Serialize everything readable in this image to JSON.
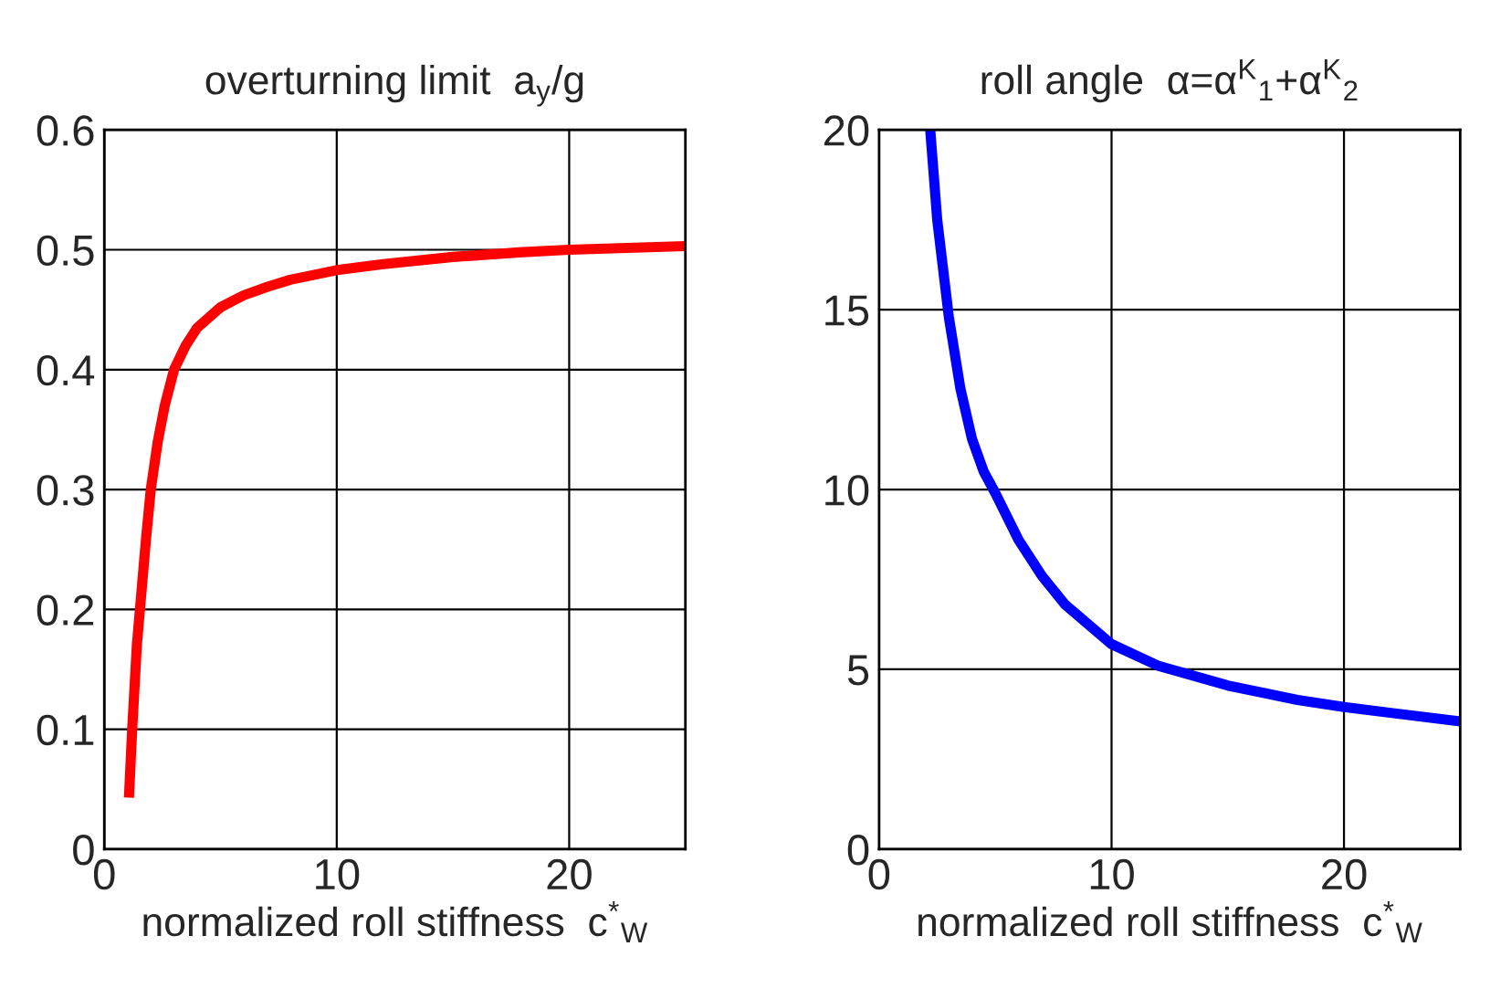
{
  "chart_data": [
    {
      "type": "line",
      "title": "overturning limit  a$_{y}$/g",
      "xlabel": "normalized roll stiffness  c$^{*}$$_{W}$",
      "series": [
        {
          "color": "#ff0000",
          "x": [
            1.06,
            1.2,
            1.4,
            1.6,
            1.8,
            2.0,
            2.3,
            2.6,
            3.0,
            3.5,
            4,
            5,
            6,
            7,
            8,
            10,
            12,
            15,
            18,
            20,
            25
          ],
          "values": [
            0.043,
            0.1,
            0.17,
            0.215,
            0.26,
            0.3,
            0.34,
            0.37,
            0.4,
            0.42,
            0.435,
            0.452,
            0.462,
            0.469,
            0.475,
            0.483,
            0.488,
            0.494,
            0.498,
            0.5,
            0.503
          ]
        }
      ],
      "xlim": [
        0,
        25
      ],
      "xticks": [
        0,
        10,
        20
      ],
      "ylim": [
        0,
        0.6
      ],
      "yticks": [
        0,
        0.1,
        0.2,
        0.3,
        0.4,
        0.5,
        0.6
      ],
      "grid": true
    },
    {
      "type": "line",
      "title": "roll angle  α=α$^{K}$$_{1}$+α$^{K}$$_{2}$",
      "xlabel": "normalized roll stiffness  c$^{*}$$_{W}$",
      "series": [
        {
          "color": "#0000ff",
          "x": [
            2.2,
            2.5,
            3,
            3.5,
            4,
            4.5,
            5,
            6,
            7,
            8,
            10,
            12,
            15,
            18,
            20,
            25
          ],
          "values": [
            20,
            17.5,
            14.8,
            12.8,
            11.4,
            10.5,
            9.9,
            8.6,
            7.6,
            6.8,
            5.7,
            5.1,
            4.55,
            4.15,
            3.95,
            3.55
          ]
        }
      ],
      "xlim": [
        0,
        25
      ],
      "xticks": [
        0,
        10,
        20
      ],
      "ylim": [
        0,
        20
      ],
      "yticks": [
        0,
        5,
        10,
        15,
        20
      ],
      "grid": true
    }
  ]
}
